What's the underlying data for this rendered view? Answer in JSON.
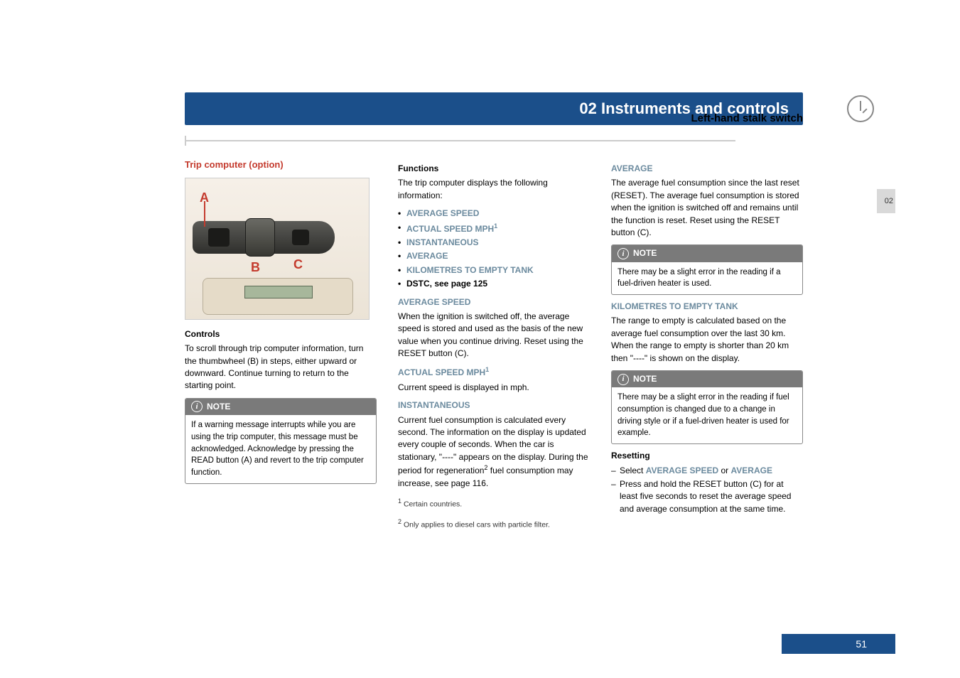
{
  "colors": {
    "header_bg": "#1b4f8a",
    "accent_red": "#c43b2e",
    "blue_text": "#6b8a9e",
    "note_header": "#7a7a7a",
    "page_bg": "#ffffff"
  },
  "header": {
    "chapter": "02 Instruments and controls",
    "section": "Left-hand stalk switch",
    "side_tab": "02"
  },
  "col1": {
    "title": "Trip computer (option)",
    "diagram": {
      "labels": {
        "A": "A",
        "B": "B",
        "C": "C"
      }
    },
    "controls_heading": "Controls",
    "controls_text": "To scroll through trip computer information, turn the thumbwheel (B) in steps, either upward or downward. Continue turning to return to the starting point.",
    "note_label": "NOTE",
    "note_text": "If a warning message interrupts while you are using the trip computer, this message must be acknowledged. Acknowledge by pressing the READ button (A) and revert to the trip computer function."
  },
  "col2": {
    "functions_heading": "Functions",
    "functions_intro": "The trip computer displays the following information:",
    "functions_list": [
      "AVERAGE SPEED",
      "ACTUAL SPEED MPH",
      "INSTANTANEOUS",
      "AVERAGE",
      "KILOMETRES TO EMPTY TANK",
      "DSTC, see page 125"
    ],
    "avg_speed_h": "AVERAGE SPEED",
    "avg_speed_p": "When the ignition is switched off, the average speed is stored and used as the basis of the new value when you continue driving. Reset using the RESET button (C).",
    "actual_h": "ACTUAL SPEED MPH",
    "actual_p": "Current speed is displayed in mph.",
    "inst_h": "INSTANTANEOUS",
    "inst_p1": "Current fuel consumption is calculated every second. The information on the display is updated every couple of seconds. When the car is stationary, \"----\" appears on the display. During the period for regeneration",
    "inst_p2": " fuel consumption may increase, see page 116.",
    "fn1": "Certain countries.",
    "fn2": "Only applies to diesel cars with particle filter."
  },
  "col3": {
    "avg_h": "AVERAGE",
    "avg_p": "The average fuel consumption since the last reset (RESET). The average fuel consumption is stored when the ignition is switched off and remains until the function is reset. Reset using the RESET button (C).",
    "note1_label": "NOTE",
    "note1_text": "There may be a slight error in the reading if a fuel-driven heater is used.",
    "km_h": "KILOMETRES TO EMPTY TANK",
    "km_p": "The range to empty is calculated based on the average fuel consumption over the last 30 km. When the range to empty is shorter than 20 km then \"----\" is shown on the display.",
    "note2_label": "NOTE",
    "note2_text": "There may be a slight error in the reading if fuel consumption is changed due to a change in driving style or if a fuel-driven heater is used for example.",
    "reset_h": "Resetting",
    "reset_item1a": "Select ",
    "reset_item1b": "AVERAGE SPEED",
    "reset_item1c": " or ",
    "reset_item1d": "AVERAGE",
    "reset_item2": "Press and hold the RESET button (C) for at least five seconds to reset the average speed and average consumption at the same time."
  },
  "page_number": "51"
}
